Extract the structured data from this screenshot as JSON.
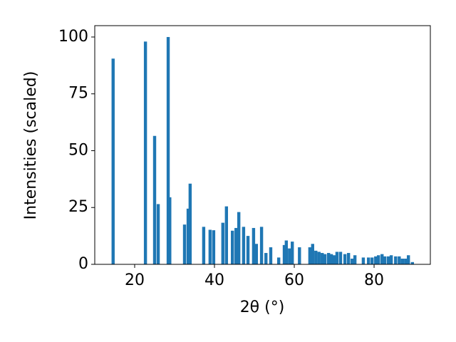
{
  "chart_data": {
    "type": "bar",
    "color": "#1f77b4",
    "x_label": "2θ (°)",
    "y_label": "Intensities (scaled)",
    "x": [
      14.6,
      22.7,
      25.0,
      25.9,
      28.4,
      28.8,
      32.5,
      33.4,
      33.9,
      37.3,
      38.9,
      39.8,
      42.1,
      43.0,
      44.5,
      45.4,
      46.1,
      47.3,
      48.4,
      49.8,
      50.5,
      51.8,
      52.9,
      54.1,
      56.1,
      57.5,
      58.0,
      58.8,
      59.5,
      61.3,
      63.9,
      64.6,
      65.4,
      66.2,
      67.0,
      67.7,
      68.6,
      69.3,
      70.0,
      70.7,
      71.6,
      72.7,
      73.6,
      74.5,
      75.2,
      77.3,
      78.6,
      79.5,
      80.4,
      81.1,
      82.0,
      82.7,
      83.6,
      84.3,
      85.4,
      86.3,
      87.1,
      87.9,
      88.6,
      89.6
    ],
    "values": [
      90.5,
      98,
      56.5,
      26.5,
      100,
      29.5,
      17.5,
      24.5,
      35.5,
      16.5,
      15.2,
      15,
      18.3,
      25.5,
      14.8,
      16,
      23,
      16.5,
      12.5,
      16,
      9,
      16.5,
      5,
      7.5,
      3,
      8.5,
      10.5,
      7,
      10,
      7.5,
      7.5,
      9,
      6,
      5.5,
      5,
      4.5,
      5,
      4.5,
      4,
      5.5,
      5.5,
      4.5,
      5,
      2.5,
      4,
      3,
      3,
      3,
      3.5,
      4,
      4.5,
      3.5,
      3.5,
      4,
      3.5,
      3.5,
      2.5,
      2.5,
      4,
      1
    ],
    "xlim": [
      10,
      94.1
    ],
    "ylim": [
      0,
      105
    ],
    "xticks": [
      20,
      40,
      60,
      80
    ],
    "yticks": [
      0,
      25,
      50,
      75,
      100
    ]
  }
}
